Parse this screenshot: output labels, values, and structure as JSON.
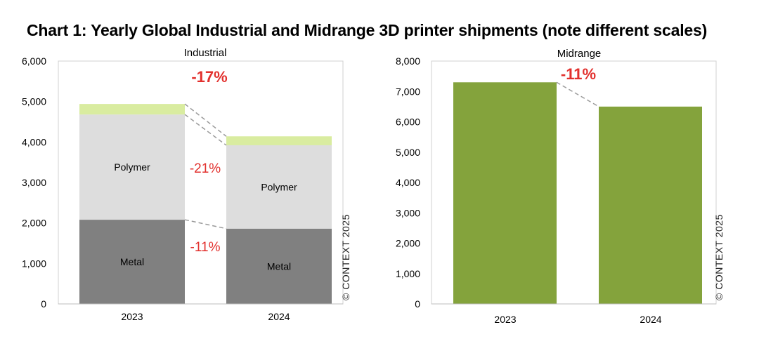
{
  "title": "Chart 1: Yearly Global Industrial and Midrange 3D printer shipments (note different scales)",
  "copyright": "© CONTEXT 2025",
  "colors": {
    "metal": "#808080",
    "polymer": "#dddddd",
    "other": "#d9eca0",
    "midrange": "#84a33c",
    "change": "#e2302d",
    "connector": "#9a9a9a"
  },
  "chart_data": [
    {
      "type": "bar",
      "stacked": true,
      "title": "Industrial",
      "categories": [
        "2023",
        "2024"
      ],
      "ylim": [
        0,
        6000
      ],
      "yticks": [
        "0",
        "1,000",
        "2,000",
        "3,000",
        "4,000",
        "5,000",
        "6,000"
      ],
      "series": [
        {
          "name": "Metal",
          "values": [
            2080,
            1860
          ],
          "color_key": "metal"
        },
        {
          "name": "Polymer",
          "values": [
            2600,
            2060
          ],
          "color_key": "polymer"
        },
        {
          "name": "",
          "values": [
            260,
            220
          ],
          "color_key": "other"
        }
      ],
      "annotations": {
        "total": "-17%",
        "polymer": "-21%",
        "metal": "-11%"
      }
    },
    {
      "type": "bar",
      "title": "Midrange",
      "categories": [
        "2023",
        "2024"
      ],
      "ylim": [
        0,
        8000
      ],
      "yticks": [
        "0",
        "1,000",
        "2,000",
        "3,000",
        "4,000",
        "5,000",
        "6,000",
        "7,000",
        "8,000"
      ],
      "series": [
        {
          "name": "",
          "values": [
            7300,
            6500
          ],
          "color_key": "midrange"
        }
      ],
      "annotations": {
        "total": "-11%"
      }
    }
  ]
}
